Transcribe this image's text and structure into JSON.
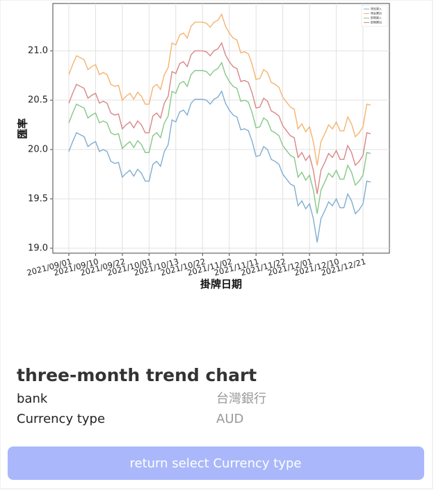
{
  "chart_data": {
    "type": "line",
    "xlabel": "掛牌日期",
    "ylabel": "匯率",
    "categories": [
      "2021/09/01",
      null,
      null,
      null,
      null,
      null,
      null,
      "2021/09/10",
      null,
      null,
      null,
      null,
      null,
      null,
      "2021/09/22",
      null,
      null,
      null,
      null,
      null,
      null,
      "2021/10/01",
      null,
      null,
      null,
      null,
      null,
      null,
      "2021/10/13",
      null,
      null,
      null,
      null,
      null,
      null,
      "2021/10/22",
      null,
      null,
      null,
      null,
      null,
      null,
      "2021/11/02",
      null,
      null,
      null,
      null,
      null,
      null,
      "2021/11/11",
      null,
      null,
      null,
      null,
      null,
      null,
      "2021/11/22",
      null,
      null,
      null,
      null,
      null,
      null,
      "2021/12/01",
      null,
      null,
      null,
      null,
      null,
      null,
      "2021/12/10",
      null,
      null,
      null,
      null,
      null,
      null,
      "2021/12/21",
      null,
      null
    ],
    "series": [
      {
        "name": "現金買入",
        "color": "#7fadd1",
        "values": [
          19.98,
          20.08,
          20.17,
          20.15,
          20.13,
          20.03,
          20.06,
          20.08,
          19.98,
          20.0,
          19.98,
          19.88,
          19.86,
          19.87,
          19.72,
          19.76,
          19.79,
          19.73,
          19.8,
          19.76,
          19.68,
          19.68,
          19.85,
          19.88,
          19.83,
          19.98,
          20.05,
          20.3,
          20.28,
          20.38,
          20.4,
          20.35,
          20.47,
          20.51,
          20.51,
          20.51,
          20.5,
          20.46,
          20.51,
          20.53,
          20.59,
          20.47,
          20.4,
          20.35,
          20.33,
          20.2,
          20.21,
          20.19,
          20.08,
          19.93,
          19.94,
          20.03,
          20.0,
          19.9,
          19.88,
          19.85,
          19.75,
          19.7,
          19.65,
          19.63,
          19.43,
          19.48,
          19.4,
          19.45,
          19.3,
          19.06,
          19.3,
          19.38,
          19.47,
          19.43,
          19.5,
          19.41,
          19.41,
          19.55,
          19.48,
          19.35,
          19.39,
          19.45,
          19.68,
          19.67
        ]
      },
      {
        "name": "現金賣出",
        "color": "#f5b36f",
        "values": [
          20.76,
          20.86,
          20.95,
          20.93,
          20.91,
          20.81,
          20.84,
          20.86,
          20.76,
          20.78,
          20.76,
          20.66,
          20.64,
          20.65,
          20.5,
          20.54,
          20.57,
          20.51,
          20.58,
          20.54,
          20.46,
          20.46,
          20.63,
          20.66,
          20.61,
          20.76,
          20.83,
          21.08,
          21.06,
          21.16,
          21.18,
          21.13,
          21.25,
          21.29,
          21.29,
          21.29,
          21.28,
          21.24,
          21.29,
          21.31,
          21.37,
          21.25,
          21.18,
          21.13,
          21.11,
          20.98,
          20.99,
          20.97,
          20.86,
          20.71,
          20.72,
          20.81,
          20.78,
          20.68,
          20.66,
          20.63,
          20.53,
          20.48,
          20.43,
          20.41,
          20.21,
          20.26,
          20.18,
          20.23,
          20.08,
          19.84,
          20.08,
          20.16,
          20.25,
          20.21,
          20.28,
          20.19,
          20.19,
          20.33,
          20.26,
          20.13,
          20.17,
          20.23,
          20.46,
          20.45
        ]
      },
      {
        "name": "即期買入",
        "color": "#86c787",
        "values": [
          20.27,
          20.37,
          20.46,
          20.44,
          20.42,
          20.32,
          20.35,
          20.37,
          20.27,
          20.29,
          20.27,
          20.17,
          20.15,
          20.16,
          20.01,
          20.05,
          20.08,
          20.02,
          20.09,
          20.05,
          19.97,
          19.97,
          20.14,
          20.17,
          20.12,
          20.27,
          20.34,
          20.59,
          20.57,
          20.67,
          20.69,
          20.64,
          20.76,
          20.8,
          20.8,
          20.8,
          20.79,
          20.75,
          20.8,
          20.82,
          20.88,
          20.76,
          20.69,
          20.64,
          20.62,
          20.49,
          20.5,
          20.48,
          20.37,
          20.22,
          20.23,
          20.32,
          20.29,
          20.19,
          20.17,
          20.14,
          20.04,
          19.99,
          19.94,
          19.92,
          19.72,
          19.77,
          19.69,
          19.74,
          19.59,
          19.35,
          19.59,
          19.67,
          19.76,
          19.72,
          19.79,
          19.7,
          19.7,
          19.84,
          19.77,
          19.64,
          19.68,
          19.74,
          19.97,
          19.96
        ]
      },
      {
        "name": "即期賣出",
        "color": "#d98686",
        "values": [
          20.47,
          20.57,
          20.66,
          20.64,
          20.62,
          20.52,
          20.55,
          20.57,
          20.47,
          20.49,
          20.47,
          20.37,
          20.35,
          20.36,
          20.21,
          20.25,
          20.28,
          20.22,
          20.29,
          20.25,
          20.17,
          20.17,
          20.34,
          20.37,
          20.32,
          20.47,
          20.54,
          20.79,
          20.77,
          20.87,
          20.89,
          20.84,
          20.96,
          21.0,
          21.0,
          21.0,
          20.99,
          20.95,
          21.0,
          21.02,
          21.08,
          20.96,
          20.89,
          20.84,
          20.82,
          20.69,
          20.7,
          20.68,
          20.57,
          20.42,
          20.43,
          20.52,
          20.49,
          20.39,
          20.37,
          20.34,
          20.24,
          20.19,
          20.14,
          20.12,
          19.92,
          19.97,
          19.89,
          19.94,
          19.79,
          19.55,
          19.79,
          19.87,
          19.96,
          19.92,
          19.99,
          19.9,
          19.9,
          20.04,
          19.97,
          19.84,
          19.88,
          19.94,
          20.17,
          20.16
        ]
      }
    ],
    "ylim": [
      18.95,
      21.48
    ],
    "yticks": [
      {
        "value": 19,
        "label": "19.0"
      },
      19.5,
      {
        "value": 20,
        "label": "20.0"
      },
      20.5,
      {
        "value": 21,
        "label": "21.0"
      }
    ],
    "grid": true,
    "legend": "upper right"
  },
  "info": {
    "title": "three-month trend chart",
    "rows": [
      [
        "bank",
        "台灣銀行"
      ],
      [
        "Currency type",
        "AUD"
      ]
    ]
  },
  "button": "return select Currency type"
}
